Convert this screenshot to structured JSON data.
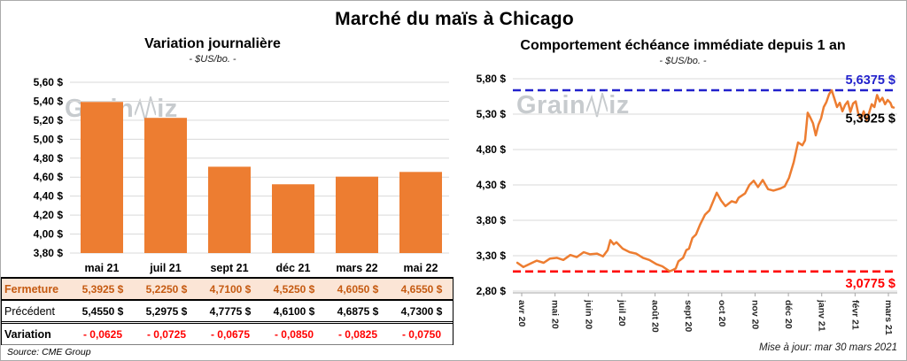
{
  "page": {
    "title": "Marché du maïs à Chicago",
    "source": "Source: CME Group",
    "updated": "Mise à jour: mar 30 mars 2021",
    "watermark_prefix": "Grain",
    "watermark_suffix": "iz"
  },
  "colors": {
    "orange": "#ED7D31",
    "red": "#FF0000",
    "blue": "#2222CC",
    "grid": "#D9D9D9",
    "axis": "#A6A6A6",
    "peach_bg": "#FBE5D6",
    "dark_orange_text": "#C55A11",
    "xlabel_text": "#262626",
    "black": "#000000"
  },
  "chart_data": [
    {
      "type": "bar",
      "title": "Variation  journalière",
      "subtitle": "- $US/bo. -",
      "categories": [
        "mai 21",
        "juil 21",
        "sept 21",
        "déc 21",
        "mars 22",
        "mai 22"
      ],
      "values": [
        5.3925,
        5.225,
        4.71,
        4.525,
        4.605,
        4.655
      ],
      "ylim": [
        3.8,
        5.6
      ],
      "ytick_step": 0.2,
      "ytick_labels": [
        "5,60 $",
        "5,40 $",
        "5,20 $",
        "5,00 $",
        "4,80 $",
        "4,60 $",
        "4,40 $",
        "4,20 $",
        "4,00 $",
        "3,80 $"
      ],
      "grid": true,
      "legend": "none"
    },
    {
      "type": "line",
      "title": "Comportement  échéance  immédiate  depuis 1 an",
      "subtitle": "- $US/bo. -",
      "x_labels": [
        "avr 20",
        "mai 20",
        "juin 20",
        "juil 20",
        "août 20",
        "sept 20",
        "oct 20",
        "nov 20",
        "déc 20",
        "janv 21",
        "févr 21",
        "mars 21"
      ],
      "ylim": [
        2.8,
        5.8
      ],
      "ytick_step": 0.5,
      "ytick_labels": [
        "5,80 $",
        "5,30 $",
        "4,80 $",
        "4,30 $",
        "3,80 $",
        "3,30 $",
        "2,80 $"
      ],
      "grid": true,
      "max_line": {
        "value": 5.6375,
        "label": "5,6375 $"
      },
      "min_line": {
        "value": 3.0775,
        "label": "3,0775 $"
      },
      "last_value": 5.3925,
      "last_label": "5,3925 $",
      "points": [
        [
          -0.13,
          3.2
        ],
        [
          0.05,
          3.14
        ],
        [
          0.27,
          3.19
        ],
        [
          0.45,
          3.23
        ],
        [
          0.66,
          3.2
        ],
        [
          0.85,
          3.26
        ],
        [
          1.06,
          3.27
        ],
        [
          1.25,
          3.24
        ],
        [
          1.46,
          3.31
        ],
        [
          1.65,
          3.28
        ],
        [
          1.86,
          3.35
        ],
        [
          2.05,
          3.32
        ],
        [
          2.26,
          3.33
        ],
        [
          2.44,
          3.29
        ],
        [
          2.58,
          3.38
        ],
        [
          2.66,
          3.52
        ],
        [
          2.76,
          3.46
        ],
        [
          2.84,
          3.49
        ],
        [
          3.03,
          3.4
        ],
        [
          3.24,
          3.35
        ],
        [
          3.43,
          3.33
        ],
        [
          3.64,
          3.27
        ],
        [
          3.83,
          3.24
        ],
        [
          4.04,
          3.18
        ],
        [
          4.22,
          3.15
        ],
        [
          4.44,
          3.08
        ],
        [
          4.54,
          3.1
        ],
        [
          4.62,
          3.12
        ],
        [
          4.7,
          3.22
        ],
        [
          4.84,
          3.27
        ],
        [
          4.94,
          3.38
        ],
        [
          5.02,
          3.4
        ],
        [
          5.12,
          3.55
        ],
        [
          5.23,
          3.6
        ],
        [
          5.35,
          3.74
        ],
        [
          5.5,
          3.88
        ],
        [
          5.63,
          3.94
        ],
        [
          5.77,
          4.1
        ],
        [
          5.85,
          4.19
        ],
        [
          5.98,
          4.08
        ],
        [
          6.11,
          4.0
        ],
        [
          6.3,
          4.07
        ],
        [
          6.43,
          4.05
        ],
        [
          6.51,
          4.12
        ],
        [
          6.7,
          4.18
        ],
        [
          6.83,
          4.3
        ],
        [
          6.96,
          4.36
        ],
        [
          7.09,
          4.27
        ],
        [
          7.23,
          4.37
        ],
        [
          7.39,
          4.24
        ],
        [
          7.55,
          4.22
        ],
        [
          7.76,
          4.25
        ],
        [
          7.89,
          4.28
        ],
        [
          8.02,
          4.4
        ],
        [
          8.16,
          4.62
        ],
        [
          8.29,
          4.9
        ],
        [
          8.42,
          4.86
        ],
        [
          8.5,
          4.93
        ],
        [
          8.58,
          5.32
        ],
        [
          8.66,
          5.25
        ],
        [
          8.74,
          5.17
        ],
        [
          8.82,
          5.0
        ],
        [
          8.9,
          5.15
        ],
        [
          8.98,
          5.24
        ],
        [
          9.06,
          5.4
        ],
        [
          9.14,
          5.47
        ],
        [
          9.22,
          5.58
        ],
        [
          9.3,
          5.6375
        ],
        [
          9.38,
          5.52
        ],
        [
          9.46,
          5.4
        ],
        [
          9.54,
          5.46
        ],
        [
          9.62,
          5.34
        ],
        [
          9.7,
          5.43
        ],
        [
          9.78,
          5.48
        ],
        [
          9.86,
          5.33
        ],
        [
          9.94,
          5.45
        ],
        [
          10.02,
          5.48
        ],
        [
          10.1,
          5.3
        ],
        [
          10.18,
          5.23
        ],
        [
          10.26,
          5.34
        ],
        [
          10.34,
          5.21
        ],
        [
          10.42,
          5.32
        ],
        [
          10.5,
          5.44
        ],
        [
          10.58,
          5.4
        ],
        [
          10.66,
          5.57
        ],
        [
          10.74,
          5.48
        ],
        [
          10.82,
          5.53
        ],
        [
          10.9,
          5.44
        ],
        [
          10.98,
          5.5
        ],
        [
          11.06,
          5.46
        ],
        [
          11.11,
          5.4
        ],
        [
          11.16,
          5.3925
        ]
      ]
    }
  ],
  "table": {
    "columns": [
      "mai 21",
      "juil 21",
      "sept 21",
      "déc 21",
      "mars 22",
      "mai 22"
    ],
    "rows": [
      {
        "key": "fermeture",
        "label": "Fermeture",
        "values": [
          "5,3925  $",
          "5,2250  $",
          "4,7100  $",
          "4,5250  $",
          "4,6050  $",
          "4,6550  $"
        ]
      },
      {
        "key": "precedent",
        "label": "Précédent",
        "values": [
          "5,4550  $",
          "5,2975  $",
          "4,7775  $",
          "4,6100  $",
          "4,6875  $",
          "4,7300  $"
        ]
      },
      {
        "key": "variation",
        "label": "Variation",
        "values": [
          "- 0,0625",
          "- 0,0725",
          "- 0,0675",
          "- 0,0850",
          "- 0,0825",
          "- 0,0750"
        ]
      }
    ]
  }
}
